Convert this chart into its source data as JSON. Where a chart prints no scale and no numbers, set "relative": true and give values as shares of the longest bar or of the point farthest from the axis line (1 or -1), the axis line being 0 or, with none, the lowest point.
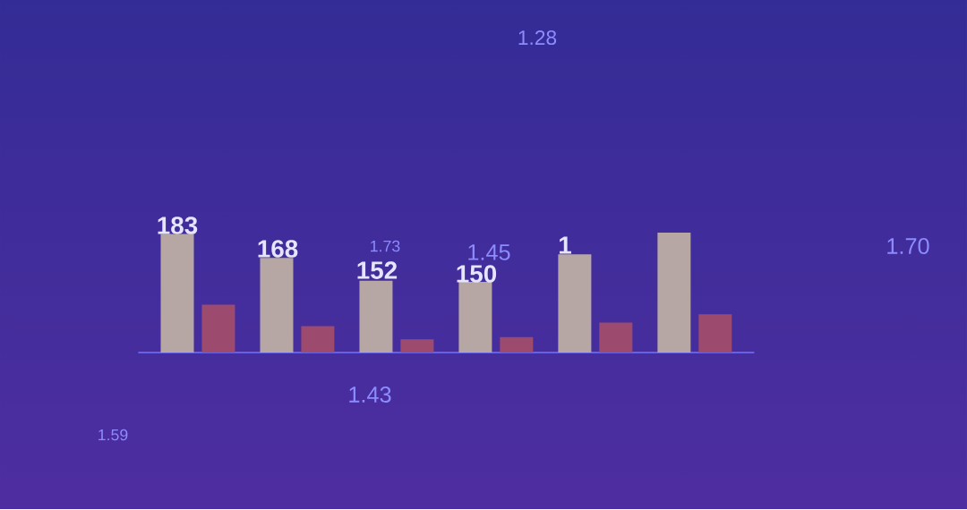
{
  "chart_data": {
    "type": "bar",
    "relative": true,
    "categories": [
      null,
      null,
      null,
      null,
      null,
      null
    ],
    "series": [
      {
        "color": "#b6a6a4",
        "values": [
          0.99,
          0.79,
          0.6,
          0.59,
          0.82,
          1
        ]
      },
      {
        "color": "#9c4a6e",
        "values": [
          0.4,
          0.22,
          0.11,
          0.13,
          0.25,
          0.32
        ]
      }
    ],
    "annotations": [
      "183",
      "168",
      "152",
      "150",
      "1",
      "1.28",
      "1.73",
      "1.45",
      "1.43",
      "1.59",
      "1.70"
    ]
  }
}
